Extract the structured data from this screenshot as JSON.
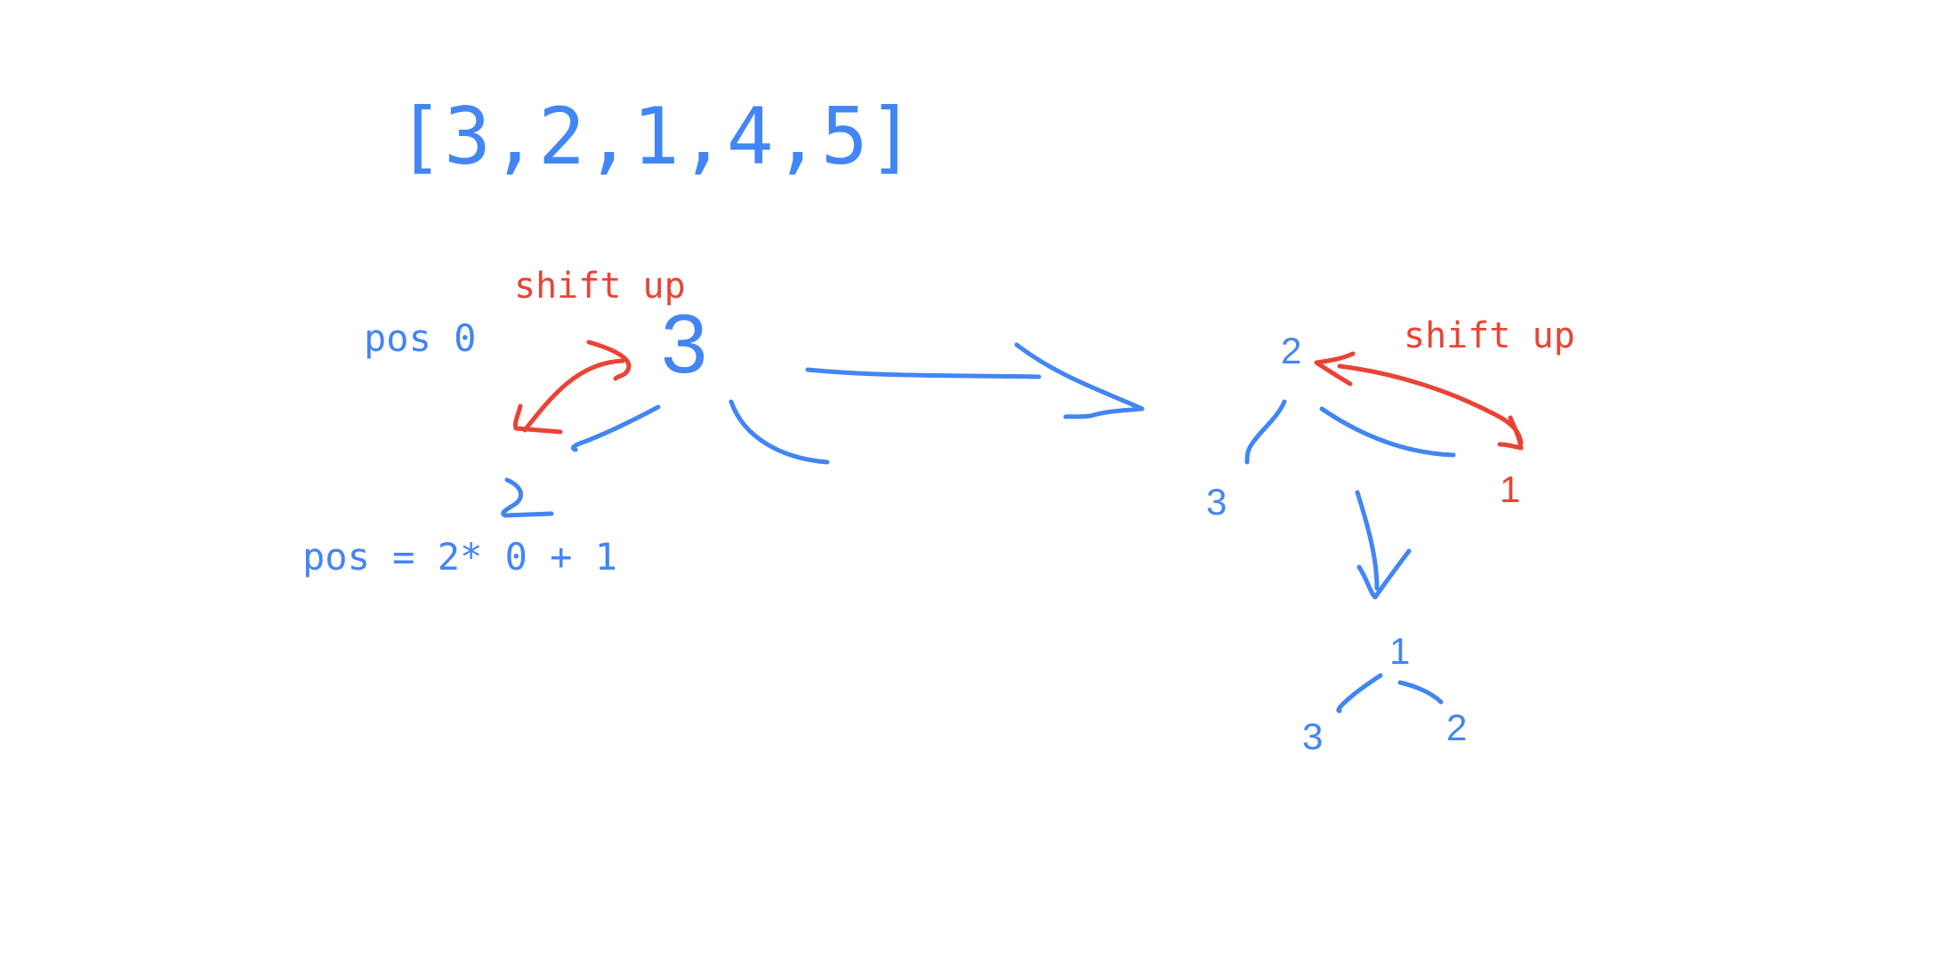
{
  "colors": {
    "blue": "#4285F4",
    "red": "#EA4335",
    "background": "#FFFFFF"
  },
  "labels": {
    "array": "[3,2,1,4,5]",
    "pos_zero": "pos 0",
    "shift_up_left": "shift up",
    "root_value_left": "3",
    "child_pos_formula": "pos = 2* 0 + 1",
    "shift_up_right": "shift up",
    "right_root": "2",
    "right_left_child": "3",
    "right_right_child": "1",
    "result_root": "1",
    "result_left_child": "3",
    "result_right_child": "2"
  },
  "strokes": {
    "blue": [
      "left-child-branch",
      "right-child-branch",
      "child-value-glyph",
      "transition-arrow",
      "right-tree-left-branch",
      "right-tree-right-branch",
      "down-arrow",
      "result-left-branch",
      "result-right-branch"
    ],
    "red": [
      "swap-arrow-left",
      "swap-arrow-right"
    ]
  }
}
